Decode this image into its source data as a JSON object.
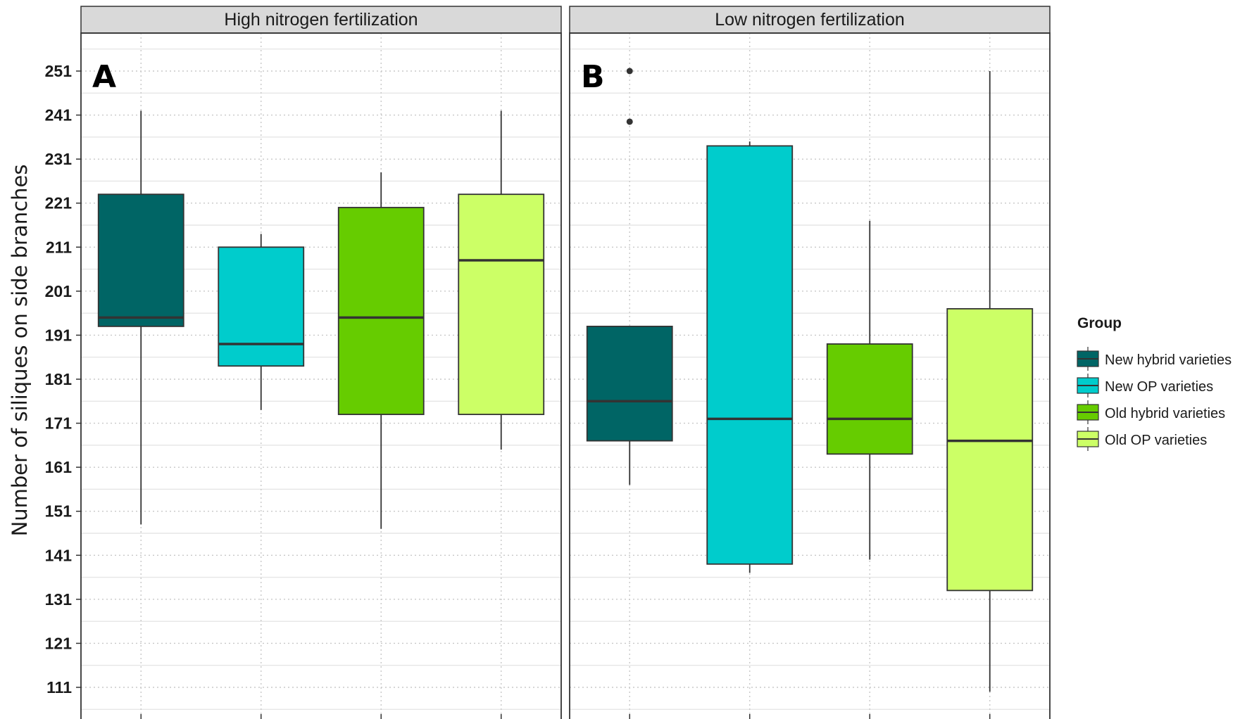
{
  "chart_data": {
    "type": "boxplot",
    "ylabel": "Number of siliques on side branches",
    "yticks": [
      111,
      121,
      131,
      141,
      151,
      161,
      171,
      181,
      191,
      201,
      211,
      221,
      231,
      241,
      251
    ],
    "ylim": [
      106,
      258
    ],
    "grid": true,
    "legend": {
      "title": "Group",
      "placement": "right",
      "entries": [
        {
          "name": "New hybrid varieties",
          "color": "#006565"
        },
        {
          "name": "New OP varieties",
          "color": "#00cccc"
        },
        {
          "name": "Old hybrid varieties",
          "color": "#66cc00"
        },
        {
          "name": "Old OP varieties",
          "color": "#ccff66"
        }
      ]
    },
    "panels": [
      {
        "strip": "High nitrogen fertilization",
        "tag": "A",
        "boxes": [
          {
            "group": "New hybrid varieties",
            "min": 148,
            "q1": 193,
            "median": 195,
            "q3": 223,
            "max": 242,
            "outliers": []
          },
          {
            "group": "New OP varieties",
            "min": 174,
            "q1": 184,
            "median": 189,
            "q3": 211,
            "max": 214,
            "outliers": []
          },
          {
            "group": "Old hybrid varieties",
            "min": 147,
            "q1": 173,
            "median": 195,
            "q3": 220,
            "max": 228,
            "outliers": []
          },
          {
            "group": "Old OP varieties",
            "min": 165,
            "q1": 173,
            "median": 208,
            "q3": 223,
            "max": 242,
            "outliers": []
          }
        ]
      },
      {
        "strip": "Low nitrogen fertilization",
        "tag": "B",
        "boxes": [
          {
            "group": "New hybrid varieties",
            "min": 157,
            "q1": 167,
            "median": 176,
            "q3": 193,
            "max": 193,
            "outliers": [
              251,
              239.5
            ]
          },
          {
            "group": "New OP varieties",
            "min": 137,
            "q1": 139,
            "median": 172,
            "q3": 234,
            "max": 235,
            "outliers": []
          },
          {
            "group": "Old hybrid varieties",
            "min": 140,
            "q1": 164,
            "median": 172,
            "q3": 189,
            "max": 217,
            "outliers": []
          },
          {
            "group": "Old OP varieties",
            "min": 110,
            "q1": 133,
            "median": 167,
            "q3": 197,
            "max": 251,
            "outliers": []
          }
        ]
      }
    ]
  }
}
